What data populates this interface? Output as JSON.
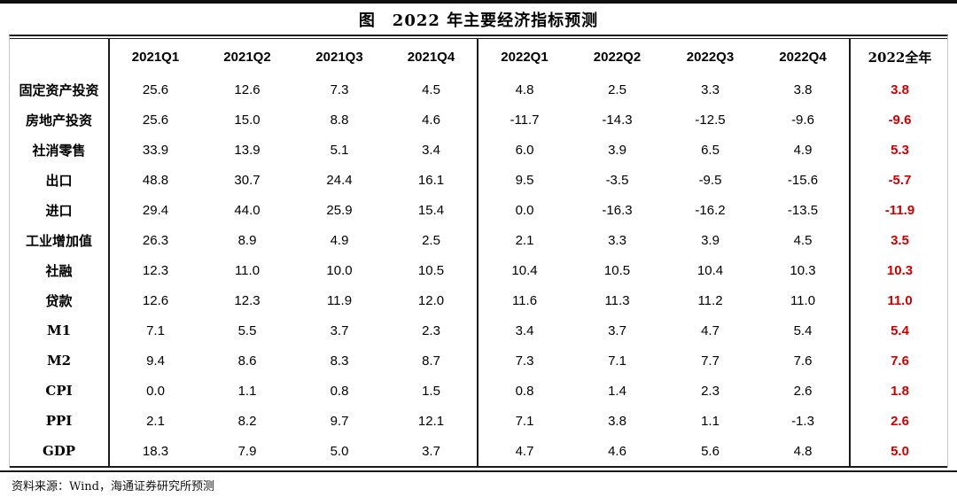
{
  "page": {
    "title": "图　2022 年主要经济指标预测",
    "source_note": "资料来源：Wind，海通证券研究所预测"
  },
  "colors": {
    "annual_highlight": "#cc0000",
    "text": "#000000",
    "rule": "#1a1a1a"
  },
  "table": {
    "columns": [
      "2021Q1",
      "2021Q2",
      "2021Q3",
      "2021Q4",
      "2022Q1",
      "2022Q2",
      "2022Q3",
      "2022Q4",
      "2022全年"
    ],
    "rows": [
      {
        "label": "固定资产投资",
        "values": [
          "25.6",
          "12.6",
          "7.3",
          "4.5",
          "4.8",
          "2.5",
          "3.3",
          "3.8"
        ],
        "annual": "3.8"
      },
      {
        "label": "房地产投资",
        "values": [
          "25.6",
          "15.0",
          "8.8",
          "4.6",
          "-11.7",
          "-14.3",
          "-12.5",
          "-9.6"
        ],
        "annual": "-9.6"
      },
      {
        "label": "社消零售",
        "values": [
          "33.9",
          "13.9",
          "5.1",
          "3.4",
          "6.0",
          "3.9",
          "6.5",
          "4.9"
        ],
        "annual": "5.3"
      },
      {
        "label": "出口",
        "values": [
          "48.8",
          "30.7",
          "24.4",
          "16.1",
          "9.5",
          "-3.5",
          "-9.5",
          "-15.6"
        ],
        "annual": "-5.7"
      },
      {
        "label": "进口",
        "values": [
          "29.4",
          "44.0",
          "25.9",
          "15.4",
          "0.0",
          "-16.3",
          "-16.2",
          "-13.5"
        ],
        "annual": "-11.9"
      },
      {
        "label": "工业增加值",
        "values": [
          "26.3",
          "8.9",
          "4.9",
          "2.5",
          "2.1",
          "3.3",
          "3.9",
          "4.5"
        ],
        "annual": "3.5"
      },
      {
        "label": "社融",
        "values": [
          "12.3",
          "11.0",
          "10.0",
          "10.5",
          "10.4",
          "10.5",
          "10.4",
          "10.3"
        ],
        "annual": "10.3"
      },
      {
        "label": "贷款",
        "values": [
          "12.6",
          "12.3",
          "11.9",
          "12.0",
          "11.6",
          "11.3",
          "11.2",
          "11.0"
        ],
        "annual": "11.0"
      },
      {
        "label": "M1",
        "values": [
          "7.1",
          "5.5",
          "3.7",
          "2.3",
          "3.4",
          "3.7",
          "4.7",
          "5.4"
        ],
        "annual": "5.4"
      },
      {
        "label": "M2",
        "values": [
          "9.4",
          "8.6",
          "8.3",
          "8.7",
          "7.3",
          "7.1",
          "7.7",
          "7.6"
        ],
        "annual": "7.6"
      },
      {
        "label": "CPI",
        "values": [
          "0.0",
          "1.1",
          "0.8",
          "1.5",
          "0.8",
          "1.4",
          "2.3",
          "2.6"
        ],
        "annual": "1.8"
      },
      {
        "label": "PPI",
        "values": [
          "2.1",
          "8.2",
          "9.7",
          "12.1",
          "7.1",
          "3.8",
          "1.1",
          "-1.3"
        ],
        "annual": "2.6"
      },
      {
        "label": "GDP",
        "values": [
          "18.3",
          "7.9",
          "5.0",
          "3.7",
          "4.7",
          "4.6",
          "5.6",
          "4.8"
        ],
        "annual": "5.0"
      }
    ]
  }
}
